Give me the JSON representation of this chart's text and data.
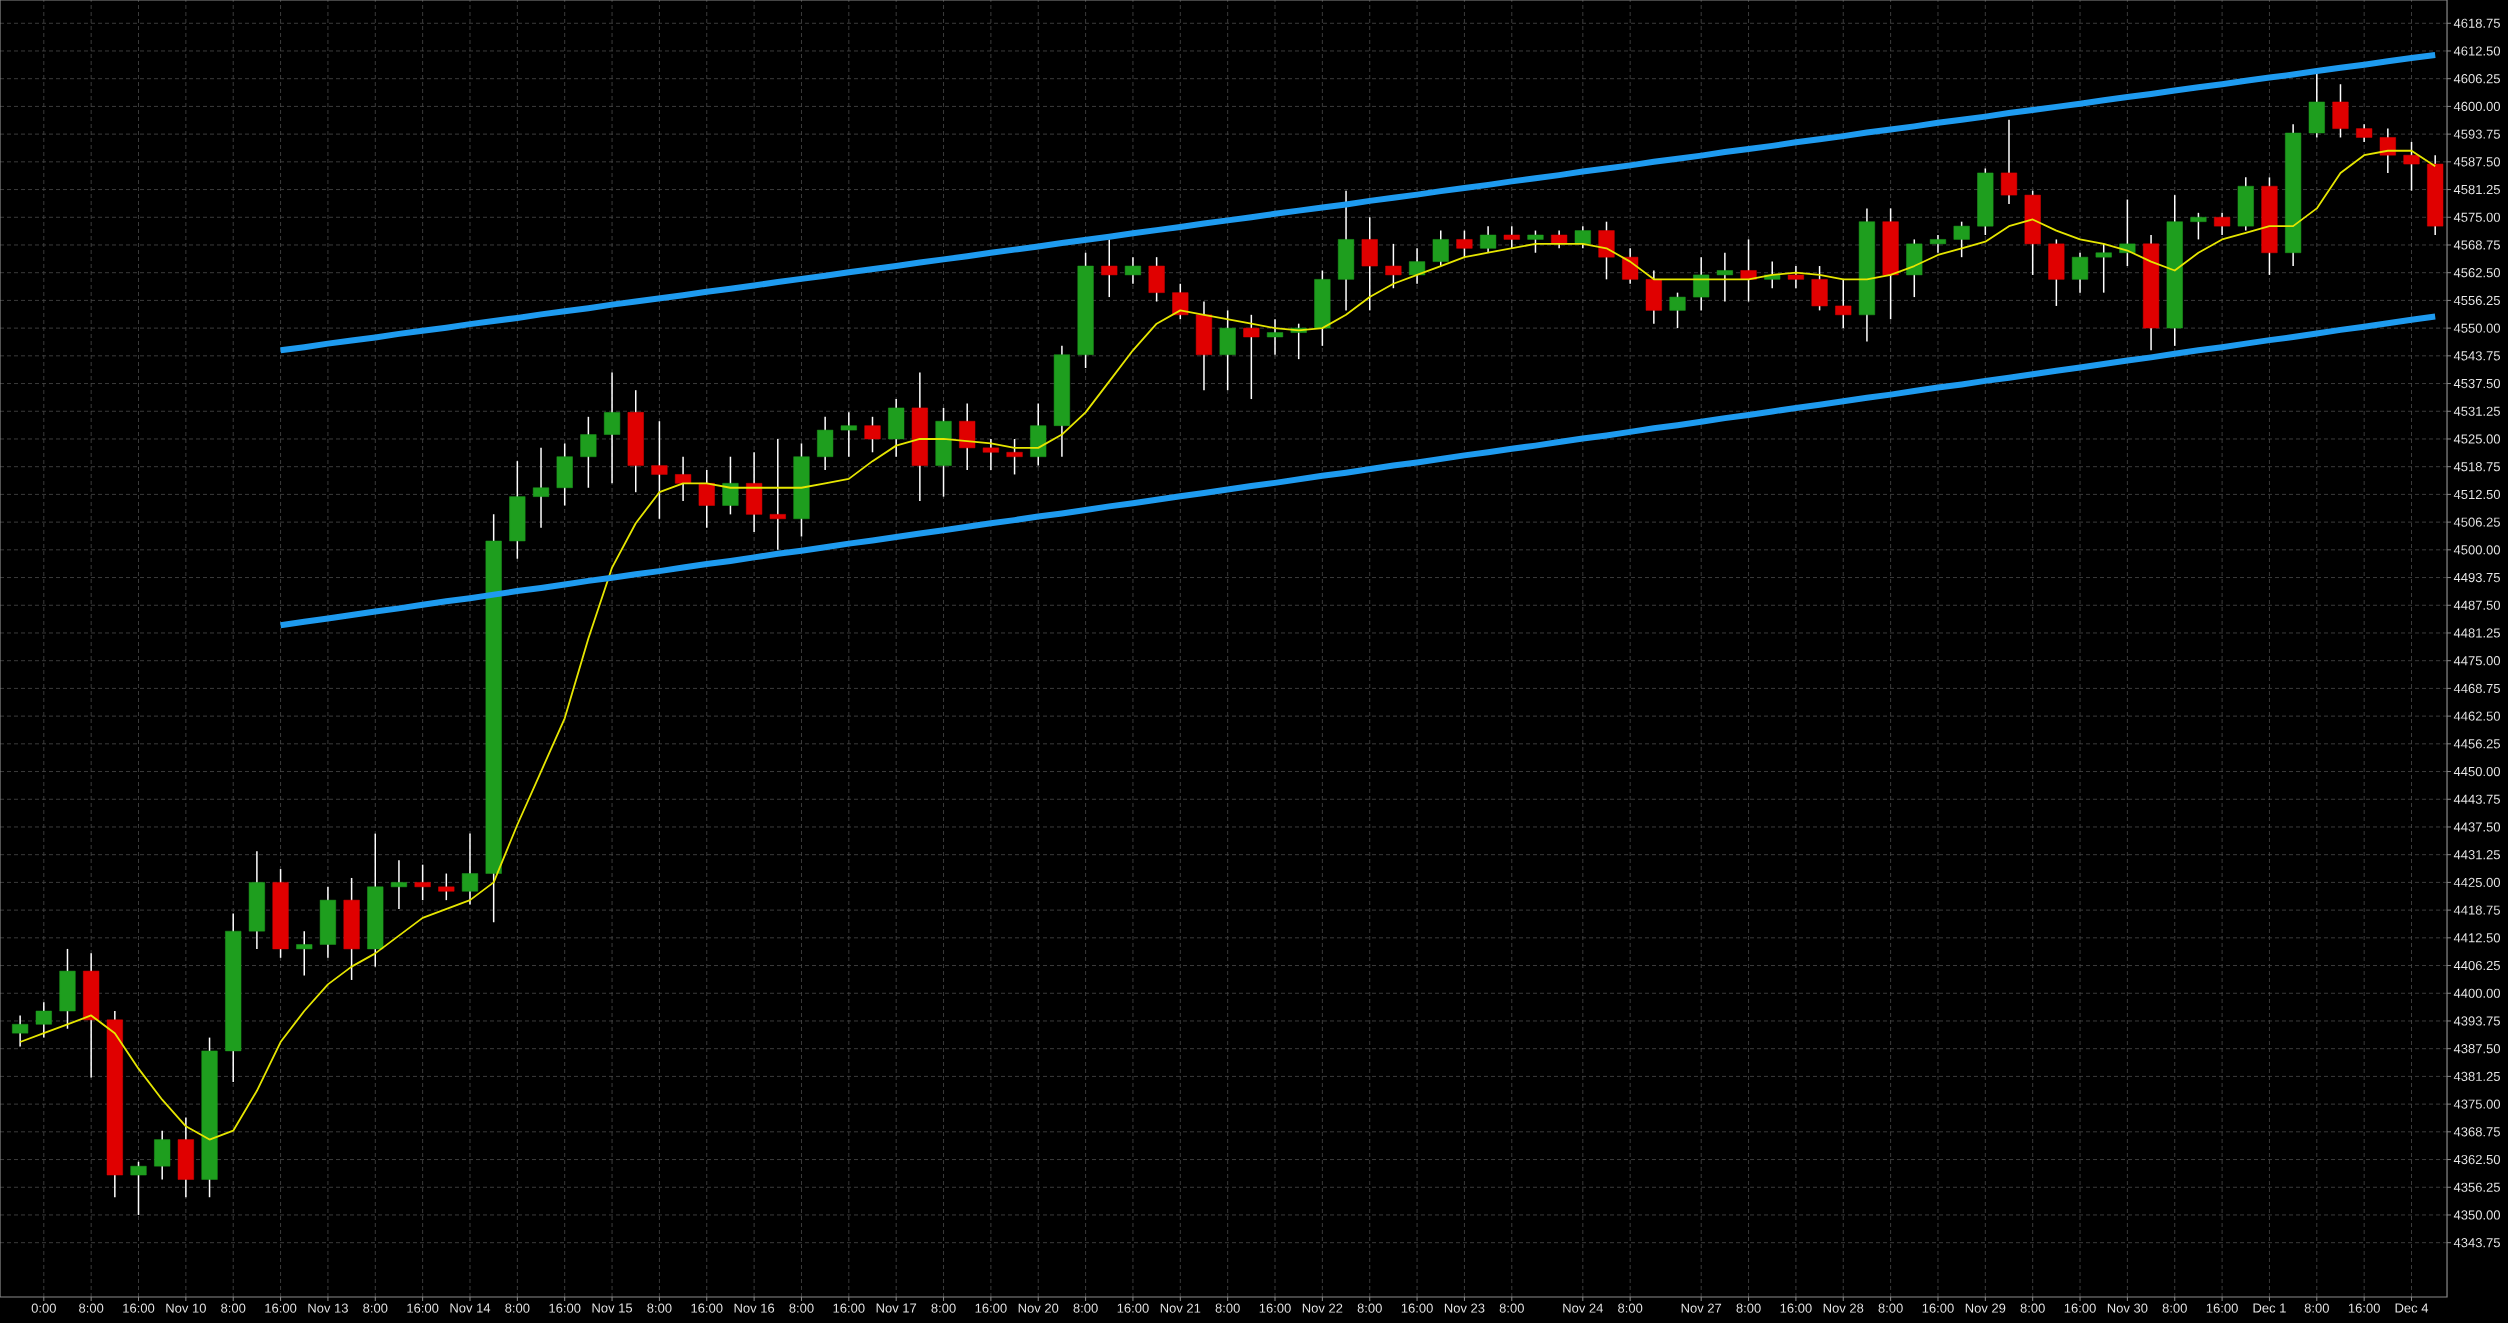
{
  "chart_data": {
    "type": "candlestick",
    "color": "#ffffff",
    "grid": true,
    "categories": [
      null,
      "0:00",
      null,
      "8:00",
      null,
      "16:00",
      null,
      "Nov 10",
      null,
      "8:00",
      null,
      "16:00",
      null,
      "Nov 13",
      null,
      "8:00",
      null,
      "16:00",
      null,
      "Nov 14",
      null,
      "8:00",
      null,
      "16:00",
      null,
      "Nov 15",
      null,
      "8:00",
      null,
      "16:00",
      null,
      "Nov 16",
      null,
      "8:00",
      null,
      "16:00",
      null,
      "Nov 17",
      null,
      "8:00",
      null,
      "16:00",
      null,
      "Nov 20",
      null,
      "8:00",
      null,
      "16:00",
      null,
      "Nov 21",
      null,
      "8:00",
      null,
      "16:00",
      null,
      "Nov 22",
      null,
      "8:00",
      null,
      "16:00",
      null,
      "Nov 23",
      null,
      "8:00",
      null,
      null,
      "Nov 24",
      null,
      "8:00",
      null,
      null,
      "Nov 27",
      null,
      "8:00",
      null,
      "16:00",
      null,
      "Nov 28",
      null,
      "8:00",
      null,
      "16:00",
      null,
      "Nov 29",
      null,
      "8:00",
      null,
      "16:00",
      null,
      "Nov 30",
      null,
      "8:00",
      null,
      "16:00",
      null,
      "Dec 1",
      null,
      "8:00",
      null,
      "16:00",
      null,
      "Dec 4",
      null
    ],
    "ohlc": [
      [
        4391,
        4395,
        4388,
        4393
      ],
      [
        4393,
        4398,
        4390,
        4396
      ],
      [
        4396,
        4410,
        4392,
        4405
      ],
      [
        4405,
        4409,
        4381,
        4394
      ],
      [
        4394,
        4396,
        4354,
        4359
      ],
      [
        4359,
        4362,
        4350,
        4361
      ],
      [
        4361,
        4369,
        4358,
        4367
      ],
      [
        4367,
        4372,
        4354,
        4358
      ],
      [
        4358,
        4390,
        4354,
        4387
      ],
      [
        4387,
        4418,
        4380,
        4414
      ],
      [
        4414,
        4432,
        4410,
        4425
      ],
      [
        4425,
        4428,
        4408,
        4410
      ],
      [
        4410,
        4414,
        4404,
        4411
      ],
      [
        4411,
        4424,
        4408,
        4421
      ],
      [
        4421,
        4426,
        4403,
        4410
      ],
      [
        4410,
        4436,
        4406,
        4424
      ],
      [
        4424,
        4430,
        4419,
        4425
      ],
      [
        4425,
        4429,
        4421,
        4424
      ],
      [
        4424,
        4427,
        4421,
        4423
      ],
      [
        4423,
        4436,
        4420,
        4427
      ],
      [
        4427,
        4508,
        4416,
        4502
      ],
      [
        4502,
        4520,
        4498,
        4512
      ],
      [
        4512,
        4523,
        4505,
        4514
      ],
      [
        4514,
        4524,
        4510,
        4521
      ],
      [
        4521,
        4530,
        4514,
        4526
      ],
      [
        4526,
        4540,
        4515,
        4531
      ],
      [
        4531,
        4536,
        4513,
        4519
      ],
      [
        4519,
        4529,
        4507,
        4517
      ],
      [
        4517,
        4521,
        4511,
        4515
      ],
      [
        4515,
        4518,
        4505,
        4510
      ],
      [
        4510,
        4521,
        4508,
        4515
      ],
      [
        4515,
        4522,
        4504,
        4508
      ],
      [
        4508,
        4525,
        4500,
        4507
      ],
      [
        4507,
        4524,
        4503,
        4521
      ],
      [
        4521,
        4530,
        4518,
        4527
      ],
      [
        4527,
        4531,
        4521,
        4528
      ],
      [
        4528,
        4530,
        4522,
        4525
      ],
      [
        4525,
        4534,
        4521,
        4532
      ],
      [
        4532,
        4540,
        4511,
        4519
      ],
      [
        4519,
        4532,
        4512,
        4529
      ],
      [
        4529,
        4533,
        4518,
        4523
      ],
      [
        4523,
        4525,
        4518,
        4522
      ],
      [
        4522,
        4525,
        4517,
        4521
      ],
      [
        4521,
        4533,
        4519,
        4528
      ],
      [
        4528,
        4546,
        4521,
        4544
      ],
      [
        4544,
        4567,
        4541,
        4564
      ],
      [
        4564,
        4570,
        4557,
        4562
      ],
      [
        4562,
        4566,
        4560,
        4564
      ],
      [
        4564,
        4566,
        4556,
        4558
      ],
      [
        4558,
        4560,
        4552,
        4553
      ],
      [
        4553,
        4556,
        4536,
        4544
      ],
      [
        4544,
        4554,
        4536,
        4550
      ],
      [
        4550,
        4553,
        4534,
        4548
      ],
      [
        4548,
        4552,
        4544,
        4549
      ],
      [
        4549,
        4551,
        4543,
        4550
      ],
      [
        4550,
        4563,
        4546,
        4561
      ],
      [
        4561,
        4581,
        4554,
        4570
      ],
      [
        4570,
        4575,
        4554,
        4564
      ],
      [
        4564,
        4569,
        4559,
        4562
      ],
      [
        4562,
        4568,
        4560,
        4565
      ],
      [
        4565,
        4572,
        4564,
        4570
      ],
      [
        4570,
        4572,
        4566,
        4568
      ],
      [
        4568,
        4573,
        4567,
        4571
      ],
      [
        4571,
        4573,
        4568,
        4570
      ],
      [
        4570,
        4572,
        4567,
        4571
      ],
      [
        4571,
        4572,
        4568,
        4569
      ],
      [
        4569,
        4573,
        4568,
        4572
      ],
      [
        4572,
        4574,
        4561,
        4566
      ],
      [
        4566,
        4568,
        4560,
        4561
      ],
      [
        4561,
        4563,
        4551,
        4554
      ],
      [
        4554,
        4558,
        4550,
        4557
      ],
      [
        4557,
        4566,
        4554,
        4562
      ],
      [
        4562,
        4567,
        4556,
        4563
      ],
      [
        4563,
        4570,
        4556,
        4561
      ],
      [
        4561,
        4565,
        4559,
        4562
      ],
      [
        4562,
        4564,
        4559,
        4561
      ],
      [
        4561,
        4564,
        4554,
        4555
      ],
      [
        4555,
        4561,
        4550,
        4553
      ],
      [
        4553,
        4577,
        4547,
        4574
      ],
      [
        4574,
        4577,
        4552,
        4562
      ],
      [
        4562,
        4570,
        4557,
        4569
      ],
      [
        4569,
        4571,
        4567,
        4570
      ],
      [
        4570,
        4574,
        4566,
        4573
      ],
      [
        4573,
        4586,
        4571,
        4585
      ],
      [
        4585,
        4597,
        4578,
        4580
      ],
      [
        4580,
        4581,
        4562,
        4569
      ],
      [
        4569,
        4570,
        4555,
        4561
      ],
      [
        4561,
        4567,
        4558,
        4566
      ],
      [
        4566,
        4569,
        4558,
        4567
      ],
      [
        4567,
        4579,
        4564,
        4569
      ],
      [
        4569,
        4571,
        4545,
        4550
      ],
      [
        4550,
        4580,
        4546,
        4574
      ],
      [
        4574,
        4576,
        4570,
        4575
      ],
      [
        4575,
        4576,
        4571,
        4573
      ],
      [
        4573,
        4584,
        4572,
        4582
      ],
      [
        4582,
        4584,
        4562,
        4567
      ],
      [
        4567,
        4596,
        4564,
        4594
      ],
      [
        4594,
        4608,
        4593,
        4601
      ],
      [
        4601,
        4605,
        4593,
        4595
      ],
      [
        4595,
        4596,
        4592,
        4593
      ],
      [
        4593,
        4595,
        4585,
        4589
      ],
      [
        4589,
        4592,
        4581,
        4587
      ],
      [
        4587,
        4589,
        4571,
        4573
      ]
    ],
    "colors": [
      "#1e9e1e",
      "#1e9e1e",
      "#1e9e1e",
      "#e00000",
      "#e00000",
      "#1e9e1e",
      "#1e9e1e",
      "#e00000",
      "#1e9e1e",
      "#1e9e1e",
      "#1e9e1e",
      "#e00000",
      "#1e9e1e",
      "#1e9e1e",
      "#e00000",
      "#1e9e1e",
      "#1e9e1e",
      "#e00000",
      "#e00000",
      "#1e9e1e",
      "#1e9e1e",
      "#1e9e1e",
      "#1e9e1e",
      "#1e9e1e",
      "#1e9e1e",
      "#1e9e1e",
      "#e00000",
      "#e00000",
      "#e00000",
      "#e00000",
      "#1e9e1e",
      "#e00000",
      "#e00000",
      "#1e9e1e",
      "#1e9e1e",
      "#1e9e1e",
      "#e00000",
      "#1e9e1e",
      "#e00000",
      "#1e9e1e",
      "#e00000",
      "#e00000",
      "#e00000",
      "#1e9e1e",
      "#1e9e1e",
      "#1e9e1e",
      "#e00000",
      "#1e9e1e",
      "#e00000",
      "#e00000",
      "#e00000",
      "#1e9e1e",
      "#e00000",
      "#1e9e1e",
      "#1e9e1e",
      "#1e9e1e",
      "#1e9e1e",
      "#e00000",
      "#e00000",
      "#1e9e1e",
      "#1e9e1e",
      "#e00000",
      "#1e9e1e",
      "#e00000",
      "#1e9e1e",
      "#e00000",
      "#1e9e1e",
      "#e00000",
      "#e00000",
      "#e00000",
      "#1e9e1e",
      "#1e9e1e",
      "#1e9e1e",
      "#e00000",
      "#1e9e1e",
      "#e00000",
      "#e00000",
      "#e00000",
      "#1e9e1e",
      "#e00000",
      "#1e9e1e",
      "#1e9e1e",
      "#1e9e1e",
      "#1e9e1e",
      "#e00000",
      "#e00000",
      "#e00000",
      "#1e9e1e",
      "#1e9e1e",
      "#1e9e1e",
      "#e00000",
      "#1e9e1e",
      "#1e9e1e",
      "#e00000",
      "#1e9e1e",
      "#e00000",
      "#1e9e1e",
      "#1e9e1e",
      "#e00000",
      "#e00000",
      "#e00000",
      "#e00000",
      "#e00000"
    ],
    "series": [
      {
        "type": "line",
        "color": "#e6e600",
        "values": [
          4389,
          4391,
          4393,
          4395,
          4391,
          4383,
          4376,
          4370,
          4367,
          4369,
          4378,
          4389,
          4396,
          4402,
          4406,
          4409,
          4413,
          4417,
          4419,
          4421,
          4425,
          4438,
          4450,
          4462,
          4480,
          4496,
          4506,
          4513,
          4515,
          4515,
          4514,
          4514,
          4514,
          4514,
          4515,
          4516,
          4520,
          4523.5,
          4525,
          4525,
          4524.5,
          4524,
          4523,
          4523,
          4526,
          4531,
          4538,
          4545,
          4551,
          4554,
          4553,
          4552,
          4551,
          4550,
          4549.5,
          4550,
          4553,
          4557,
          4560,
          4562,
          4564,
          4566,
          4567,
          4568,
          4569,
          4569,
          4569,
          4568,
          4565,
          4561,
          4561,
          4561,
          4561,
          4561,
          4562,
          4562.5,
          4562,
          4561,
          4561,
          4562,
          4564,
          4566.5,
          4568,
          4569.5,
          4573,
          4574.5,
          4572,
          4570,
          4569,
          4567.5,
          4565,
          4563,
          4567,
          4570,
          4571.5,
          4573,
          4573,
          4577,
          4585,
          4589,
          4590,
          4590,
          4586.5
        ]
      },
      {
        "type": "line",
        "color": "#1e9bf0",
        "values": [
          null,
          null,
          null,
          null,
          null,
          null,
          null,
          null,
          null,
          null,
          null,
          4545.0,
          4545.7,
          4546.5,
          4547.2,
          4547.9,
          4548.7,
          4549.4,
          4550.1,
          4550.9,
          4551.6,
          4552.3,
          4553.1,
          4553.8,
          4554.5,
          4555.3,
          4556.0,
          4556.7,
          4557.4,
          4558.2,
          4558.9,
          4559.6,
          4560.4,
          4561.1,
          4561.8,
          4562.6,
          4563.3,
          4564.0,
          4564.8,
          4565.5,
          4566.2,
          4567.0,
          4567.7,
          4568.4,
          4569.2,
          4569.9,
          4570.6,
          4571.4,
          4572.1,
          4572.8,
          4573.6,
          4574.3,
          4575.0,
          4575.8,
          4576.5,
          4577.2,
          4577.9,
          4578.7,
          4579.4,
          4580.1,
          4580.9,
          4581.6,
          4582.3,
          4583.1,
          4583.8,
          4584.5,
          4585.3,
          4586.0,
          4586.7,
          4587.5,
          4588.2,
          4588.9,
          4589.7,
          4590.4,
          4591.1,
          4591.9,
          4592.6,
          4593.3,
          4594.1,
          4594.8,
          4595.5,
          4596.3,
          4597.0,
          4597.7,
          4598.5,
          4599.2,
          4599.9,
          4600.6,
          4601.4,
          4602.1,
          4602.8,
          4603.6,
          4604.3,
          4605.0,
          4605.8,
          4606.5,
          4607.2,
          4608.0,
          4608.7,
          4609.4,
          4610.2,
          4610.9,
          4611.6
        ]
      },
      {
        "type": "line",
        "color": "#1e9bf0",
        "values": [
          null,
          null,
          null,
          null,
          null,
          null,
          null,
          null,
          null,
          null,
          null,
          4483.0,
          4483.8,
          4484.5,
          4485.3,
          4486.1,
          4486.8,
          4487.6,
          4488.4,
          4489.1,
          4489.9,
          4490.7,
          4491.4,
          4492.2,
          4493.0,
          4493.7,
          4494.5,
          4495.2,
          4496.0,
          4496.8,
          4497.5,
          4498.3,
          4499.1,
          4499.8,
          4500.6,
          4501.4,
          4502.1,
          4502.9,
          4503.7,
          4504.4,
          4505.2,
          4506.0,
          4506.7,
          4507.5,
          4508.2,
          4509.0,
          4509.8,
          4510.5,
          4511.3,
          4512.1,
          4512.8,
          4513.6,
          4514.4,
          4515.1,
          4515.9,
          4516.7,
          4517.4,
          4518.2,
          4519.0,
          4519.7,
          4520.5,
          4521.3,
          4522.0,
          4522.8,
          4523.5,
          4524.3,
          4525.1,
          4525.8,
          4526.6,
          4527.4,
          4528.1,
          4528.9,
          4529.7,
          4530.4,
          4531.2,
          4532.0,
          4532.7,
          4533.5,
          4534.3,
          4535.0,
          4535.8,
          4536.6,
          4537.3,
          4538.1,
          4538.8,
          4539.6,
          4540.4,
          4541.1,
          4541.9,
          4542.7,
          4543.4,
          4544.2,
          4545.0,
          4545.7,
          4546.5,
          4547.3,
          4548.0,
          4548.8,
          4549.6,
          4550.3,
          4551.1,
          4551.9,
          4552.6
        ]
      }
    ],
    "ylim": [
      4331.5,
      4624
    ],
    "yticks": [
      4343.75,
      {
        "value": 4350,
        "label": "4350.00"
      },
      4356.25,
      {
        "value": 4362.5,
        "label": "4362.50"
      },
      4368.75,
      {
        "value": 4375,
        "label": "4375.00"
      },
      4381.25,
      {
        "value": 4387.5,
        "label": "4387.50"
      },
      4393.75,
      {
        "value": 4400,
        "label": "4400.00"
      },
      4406.25,
      {
        "value": 4412.5,
        "label": "4412.50"
      },
      4418.75,
      {
        "value": 4425,
        "label": "4425.00"
      },
      4431.25,
      {
        "value": 4437.5,
        "label": "4437.50"
      },
      4443.75,
      {
        "value": 4450,
        "label": "4450.00"
      },
      4456.25,
      {
        "value": 4462.5,
        "label": "4462.50"
      },
      4468.75,
      {
        "value": 4475,
        "label": "4475.00"
      },
      4481.25,
      {
        "value": 4487.5,
        "label": "4487.50"
      },
      4493.75,
      {
        "value": 4500,
        "label": "4500.00"
      },
      4506.25,
      {
        "value": 4512.5,
        "label": "4512.50"
      },
      4518.75,
      {
        "value": 4525,
        "label": "4525.00"
      },
      4531.25,
      {
        "value": 4537.5,
        "label": "4537.50"
      },
      4543.75,
      {
        "value": 4550,
        "label": "4550.00"
      },
      4556.25,
      {
        "value": 4562.5,
        "label": "4562.50"
      },
      4568.75,
      {
        "value": 4575,
        "label": "4575.00"
      },
      4581.25,
      {
        "value": 4587.5,
        "label": "4587.50"
      },
      4593.75,
      {
        "value": 4600,
        "label": "4600.00"
      },
      4606.25,
      {
        "value": 4612.5,
        "label": "4612.50"
      },
      4618.75
    ]
  }
}
